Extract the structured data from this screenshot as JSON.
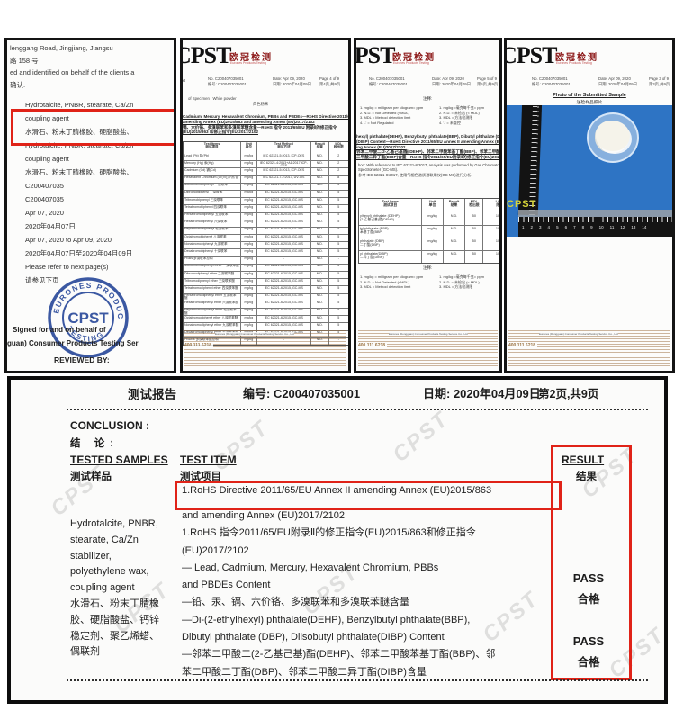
{
  "colors": {
    "red_box": "#e02318",
    "photo_blue": "#2e74c4",
    "stamp_blue": "#2b4b9b",
    "logo_red": "#8b1616",
    "watermark_yellow": "#d6d438"
  },
  "panel1": {
    "lines": [
      "lenggang Road, Jingjiang, Jiangsu",
      "路 158 号",
      "ed and identified on behalf of the clients a",
      "确认."
    ],
    "sample_lines": [
      "Hydrotalcite, PNBR, stearate, Ca/Zn",
      "coupling agent",
      "水滑石、粉末丁腈橡胶、硬脂酸盐、",
      "Hydrotalcite, PNBR, stearate, Ca/Zn",
      "coupling agent",
      "水滑石、粉末丁腈橡胶、硬脂酸盐、",
      "C200407035",
      "C200407035",
      "Apr 07, 2020",
      "2020年04月07日",
      "Apr 07, 2020 to Apr 09, 2020",
      "2020年04月07日至2020年04月09日",
      "Please refer to next page(s)",
      "请参见下页"
    ],
    "stamp": {
      "arc_top": "EURONES PRODUCTS",
      "center": "CPST",
      "arc_bottom": "TESTING"
    },
    "signed_1": "Signed for and on behalf of",
    "signed_2": "guan) Consumer Products Testing Ser",
    "reviewed": "REVIEWED BY:"
  },
  "cert": {
    "logo": "CPST",
    "logo_cn": "欧冠检测",
    "logo_sub": "Eurones Products Testing",
    "no_en": "No.   C200407035001",
    "no_cn": "编号: C200407035001",
    "date_en": "Date: Apr 09, 2020",
    "date_cn": "日期: 2020年04月09日",
    "frag": "ort",
    "footer_phone": "400 111 6218",
    "footer_company": "Eurones (Dongguan) Consumer Products Testing Service Co., Ltd"
  },
  "panel2": {
    "page_en": "Page 4 of 9",
    "page_cn": "第4页,共9页",
    "specimen_en": "of Specimen      :    White powder",
    "specimen_cn": "白色粉末",
    "title_lines": [
      "Cadmium, Mercury, Hexavalent Chromium, PBBs and PBDEs—RoHS Directive 2011/65",
      "amending Annex (EU)2015/863 and amending Annex (EU)2017/2102",
      "镉、六价铬、多溴联苯和多溴联苯醚含量—RoHS 指令 2011/65/EU 附录Ⅱ的修正指令",
      "(EU)2015/863 和修正指令(EU)2017/2102"
    ],
    "header_rows": [
      [
        "Test Items\n测试项目",
        "Unit\n单位",
        "Test Method\n测试方法",
        "Result\n结果",
        "MDL\n检出限"
      ]
    ],
    "rows": [
      [
        "Lead (Pb) 铅(Pb)",
        "mg/kg",
        "IEC 62321-5:2013, ICP-OES",
        "N.D.",
        "2"
      ],
      [
        "Mercury (Hg) 汞(Hg)",
        "mg/kg",
        "IEC 62321-4:2013+A1:2017 ICP-OES",
        "N.D.",
        "2"
      ],
      [
        "Cadmium (Cd) 镉(Cd)",
        "mg/kg",
        "IEC 62321-5:2013, ICP-OES",
        "N.D.",
        "2"
      ],
      [
        "Hexavalent Chromium (Cr(VI)) 六价铬",
        "mg/kg",
        "IEC 62321-7-2:2017, UV-VIS",
        "N.D.",
        "8"
      ],
      [
        "Monobromobiphenyl 一溴联苯",
        "mg/kg",
        "IEC 62321-6:2015, GC-MS",
        "N.D.",
        "5"
      ],
      [
        "Dibromobiphenyl 二溴联苯",
        "mg/kg",
        "IEC 62321-6:2015, GC-MS",
        "N.D.",
        "5"
      ],
      [
        "Tribromobiphenyl 三溴联苯",
        "mg/kg",
        "IEC 62321-6:2015, GC-MS",
        "N.D.",
        "5"
      ],
      [
        "Tetrabromobiphenyl 四溴联苯",
        "mg/kg",
        "IEC 62321-6:2015, GC-MS",
        "N.D.",
        "5"
      ],
      [
        "Pentabromobiphenyl 五溴联苯",
        "mg/kg",
        "IEC 62321-6:2015, GC-MS",
        "N.D.",
        "5"
      ],
      [
        "Hexabromobiphenyl 六溴联苯",
        "mg/kg",
        "IEC 62321-6:2015, GC-MS",
        "N.D.",
        "5"
      ],
      [
        "Heptabromobiphenyl 七溴联苯",
        "mg/kg",
        "IEC 62321-6:2015, GC-MS",
        "N.D.",
        "5"
      ],
      [
        "Octabromobiphenyl 八溴联苯",
        "mg/kg",
        "IEC 62321-6:2015, GC-MS",
        "N.D.",
        "5"
      ],
      [
        "Nonabromobiphenyl 九溴联苯",
        "mg/kg",
        "IEC 62321-6:2015, GC-MS",
        "N.D.",
        "5"
      ],
      [
        "Decabromobiphenyl 十溴联苯",
        "mg/kg",
        "IEC 62321-6:2015, GC-MS",
        "N.D.",
        "5"
      ],
      [
        "PBBs 多溴联苯总和",
        "mg/kg",
        "-",
        "N.D.",
        "-"
      ],
      [
        "Monobromodiphenyl ether 一溴联苯醚",
        "mg/kg",
        "IEC 62321-6:2015, GC-MS",
        "N.D.",
        "5"
      ],
      [
        "Dibromodiphenyl ether 二溴联苯醚",
        "mg/kg",
        "IEC 62321-6:2015, GC-MS",
        "N.D.",
        "5"
      ],
      [
        "Tribromodiphenyl ether 三溴联苯醚",
        "mg/kg",
        "IEC 62321-6:2015, GC-MS",
        "N.D.",
        "5"
      ],
      [
        "Tetrabromodiphenyl ether 四溴联苯醚",
        "mg/kg",
        "IEC 62321-6:2015, GC-MS",
        "N.D.",
        "5"
      ],
      [
        "Pentabromodiphenyl ether 五溴联苯醚",
        "mg/kg",
        "IEC 62321-6:2015, GC-MS",
        "N.D.",
        "5"
      ],
      [
        "Hexabromodiphenyl ether 六溴联苯醚",
        "mg/kg",
        "IEC 62321-6:2015, GC-MS",
        "N.D.",
        "5"
      ],
      [
        "Heptabromodiphenyl ether 七溴联苯醚",
        "mg/kg",
        "IEC 62321-6:2015, GC-MS",
        "N.D.",
        "5"
      ],
      [
        "Octabromodiphenyl ether 八溴联苯醚",
        "mg/kg",
        "IEC 62321-6:2015, GC-MS",
        "N.D.",
        "5"
      ],
      [
        "Nonabromodiphenyl ether 九溴联苯醚",
        "mg/kg",
        "IEC 62321-6:2015, GC-MS",
        "N.D.",
        "5"
      ],
      [
        "Decabromodiphenyl ether 十溴联苯醚",
        "mg/kg",
        "IEC 62321-6:2015, GC-MS",
        "N.D.",
        "5"
      ],
      [
        "PBDEs 多溴联苯醚总和",
        "mg/kg",
        "-",
        "N.D.",
        "-"
      ]
    ]
  },
  "panel3": {
    "page_en": "Page 5 of 9",
    "page_cn": "第5页,共9页",
    "note_title": "注释:",
    "notes_en": [
      "1.  mg/kg = milligram per kilogram= ppm",
      "2.  N.D. = Not Detected (<MDL)",
      "3.  MDL = Method detection limit",
      "4.  '-' = Not Regulated"
    ],
    "notes_cn": [
      "1.  mg/kg =毫克每千克= ppm",
      "2.  N.D. = 未检出 (< MDL)",
      "3.  MDL = 方法检测限",
      "4.  '-' = 未管控"
    ],
    "title_lines": [
      "hexyl) phthalate(DEHP), Benzylbutyl phthalate(BBP), Dibutyl phthalate (DBP), Diiso",
      "(DIBP) Content—RoHS Directive 2011/65/EU Annex II amending Annex (EU)2015/863 a",
      "ing Annex (EU)2017/2102",
      "邻苯二甲酸二(2-乙基己基)酯(DEHP)、邻苯二甲酸苯基丁酯(BBP)、邻苯二甲酸二丁酯(DBP)、",
      "二甲酸二异丁酯(DIBP)含量—RoHS 指令2011/65/EU附录Ⅱ的修正指令(EU)2015/863和修正指令"
    ],
    "method_lines": [
      "hod: With reference to IEC 62321-8:2017, analysis was performed by Gas Chromatograph Ma",
      "Spectrometer (GC-MS).",
      "参考 IEC 62321-8:2017, 使用气相色谱质谱联用仪(GC-MS)进行分析."
    ],
    "header_rows": [
      [
        "Test Items\n测试项目",
        "Unit\n单位",
        "Result\n结果",
        "MDL\n检出限",
        "Limit\n限值"
      ]
    ],
    "rows": [
      [
        "ylhexyl) phthalate (DEHP)\n(2-乙基己基)酯(DEHP)",
        "mg/kg",
        "N.D.",
        "50",
        "1000"
      ],
      [
        "tyl phthalate (BBP)\n苯基丁酯(BBP)",
        "mg/kg",
        "N.D.",
        "50",
        "1000"
      ],
      [
        "phthalate (DBP)\n二丁酯(DBP)",
        "mg/kg",
        "N.D.",
        "50",
        "1000"
      ],
      [
        "yl phthalate(DIBP)\n二异丁酯(DIBP)",
        "mg/kg",
        "N.D.",
        "50",
        "1000"
      ]
    ],
    "note_title2": "注释:",
    "notes2_en": [
      "1.  mg/kg = milligram per kilogram= ppm",
      "2.  N.D. = Not Detected (<MDL)",
      "3.  MDL = Method detection limit"
    ],
    "notes2_cn": [
      "1.  mg/kg =毫克每千克= ppm",
      "2.  N.D. = 未检出 (< MDL)",
      "3.  MDL = 方法检测限"
    ]
  },
  "panel4": {
    "page_en": "Page 3 of 9",
    "page_cn": "第3页,共9页",
    "photo_title_en": "Photo of the Submitted Sample",
    "photo_title_cn": "送检样品照片",
    "watermark": "CPST",
    "ruler_numbers": [
      "1",
      "2",
      "3",
      "4",
      "5",
      "6",
      "7",
      "8",
      "9",
      "10",
      "11",
      "12",
      "13",
      "14"
    ]
  },
  "report": {
    "title_cn": "测试报告",
    "no": "编号: C200407035001",
    "date": "日期: 2020年04月09日",
    "page": "第2页,共9页",
    "conclusion_en": "CONCLUSION :",
    "conclusion_cn": "结  论:",
    "col_samples_en": "TESTED SAMPLES",
    "col_samples_cn": "测试样品",
    "col_item_en": "TEST ITEM",
    "col_item_cn": "测试项目",
    "col_result_en": "RESULT",
    "col_result_cn": "结果",
    "samples_lines": [
      "Hydrotalcite, PNBR,",
      "stearate, Ca/Zn",
      "stabilizer,",
      "polyethylene wax,",
      "coupling agent",
      "水滑石、粉末丁腈橡",
      "胶、硬脂酸盐、钙锌",
      "稳定剂、聚乙烯蜡、",
      "偶联剂"
    ],
    "item_boxed": "1.RoHS Directive 2011/65/EU Annex II amending Annex (EU)2015/863",
    "item_lines": [
      "and amending Annex (EU)2017/2102",
      "1.RoHS 指令2011/65/EU附录Ⅱ的修正指令(EU)2015/863和修正指令",
      "(EU)2017/2102",
      "— Lead, Cadmium, Mercury, Hexavalent Chromium, PBBs",
      "   and PBDEs Content",
      "—铅、汞、镉、六价铬、多溴联苯和多溴联苯醚含量",
      "—Di-(2-ethylhexyl) phthalate(DEHP), Benzylbutyl phthalate(BBP),",
      "   Dibutyl phthalate (DBP), Diisobutyl phthalate(DIBP) Content",
      "—邻苯二甲酸二(2-乙基己基)酯(DEHP)、邻苯二甲酸苯基丁酯(BBP)、邻",
      "   苯二甲酸二丁酯(DBP)、邻苯二甲酸二异丁酯(DIBP)含量"
    ],
    "result1_en": "PASS",
    "result1_cn": "合格",
    "result2_en": "PASS",
    "result2_cn": "合格",
    "watermark": "CPST"
  }
}
